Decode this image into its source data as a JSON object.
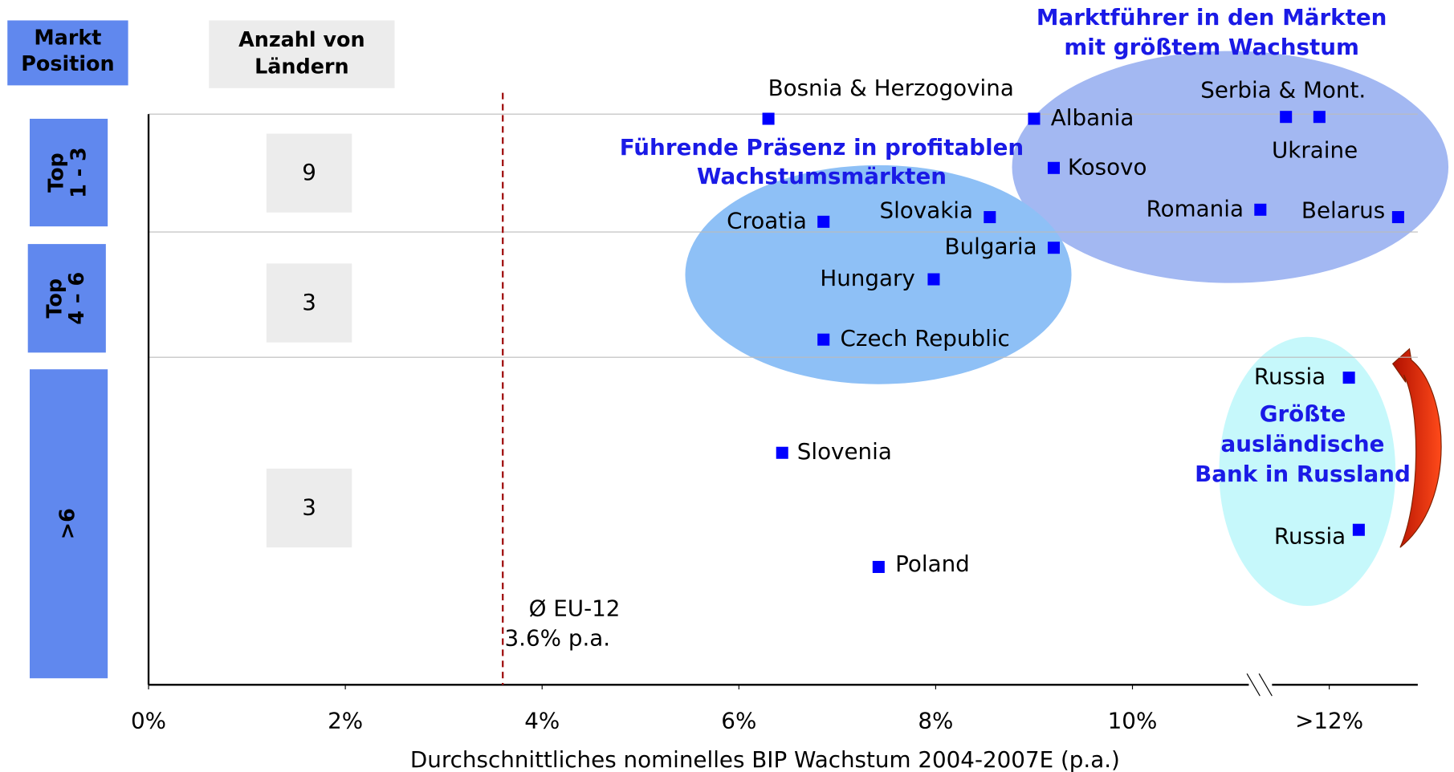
{
  "chart_data": {
    "type": "scatter",
    "row_header": [
      "Markt",
      "Position"
    ],
    "count_header": [
      "Anzahl von",
      "Ländern"
    ],
    "rows": [
      {
        "label": [
          "Top",
          "1 - 3"
        ],
        "count": 9
      },
      {
        "label": [
          "Top",
          "4 – 6"
        ],
        "count": 3
      },
      {
        "label": [
          ">6"
        ],
        "count": 3
      }
    ],
    "points": [
      {
        "label": "Bosnia & Herzogovina",
        "x": 6.3
      },
      {
        "label": "Albania",
        "x": 9.0
      },
      {
        "label": "Serbia & Mont.",
        "x": 11.56
      },
      {
        "label": "Ukraine",
        "x": 11.9
      },
      {
        "label": "Kosovo",
        "x": 9.2
      },
      {
        "label": "Romania",
        "x": 11.3
      },
      {
        "label": "Belarus",
        "x": 12.7
      },
      {
        "label": "Croatia",
        "x": 6.86
      },
      {
        "label": "Slovakia",
        "x": 8.55
      },
      {
        "label": "Bulgaria",
        "x": 9.2
      },
      {
        "label": "Hungary",
        "x": 7.98
      },
      {
        "label": "Czech Republic",
        "x": 6.86
      },
      {
        "label": "Russia",
        "x": 12.2
      },
      {
        "label": "Slovenia",
        "x": 6.44
      },
      {
        "label": "Russia",
        "x": 12.3
      },
      {
        "label": "Poland",
        "x": 7.42
      }
    ],
    "color": "#0000ff",
    "annotations": [
      [
        "Marktführer in den Märkten",
        "mit größtem Wachstum"
      ],
      [
        "Führende Präsenz in profitablen",
        "Wachstumsmärkten"
      ],
      [
        "Größte",
        "ausländische",
        "Bank in Russland"
      ]
    ],
    "eu_average": {
      "name": "Ø EU-12",
      "value": 3.6,
      "value_label": "3.6% p.a."
    },
    "xlim": [
      0,
      12.9
    ],
    "xticks": [
      {
        "value": 0,
        "label": "0%"
      },
      {
        "value": 2,
        "label": "2%"
      },
      {
        "value": 4,
        "label": "4%"
      },
      {
        "value": 6,
        "label": "6%"
      },
      {
        "value": 8,
        "label": "8%"
      },
      {
        "value": 10,
        "label": "10%"
      },
      {
        "value": 12,
        "label": ">12%"
      }
    ],
    "xlabel": "Durchschnittliches nominelles BIP Wachstum 2004-2007E (p.a.)"
  }
}
